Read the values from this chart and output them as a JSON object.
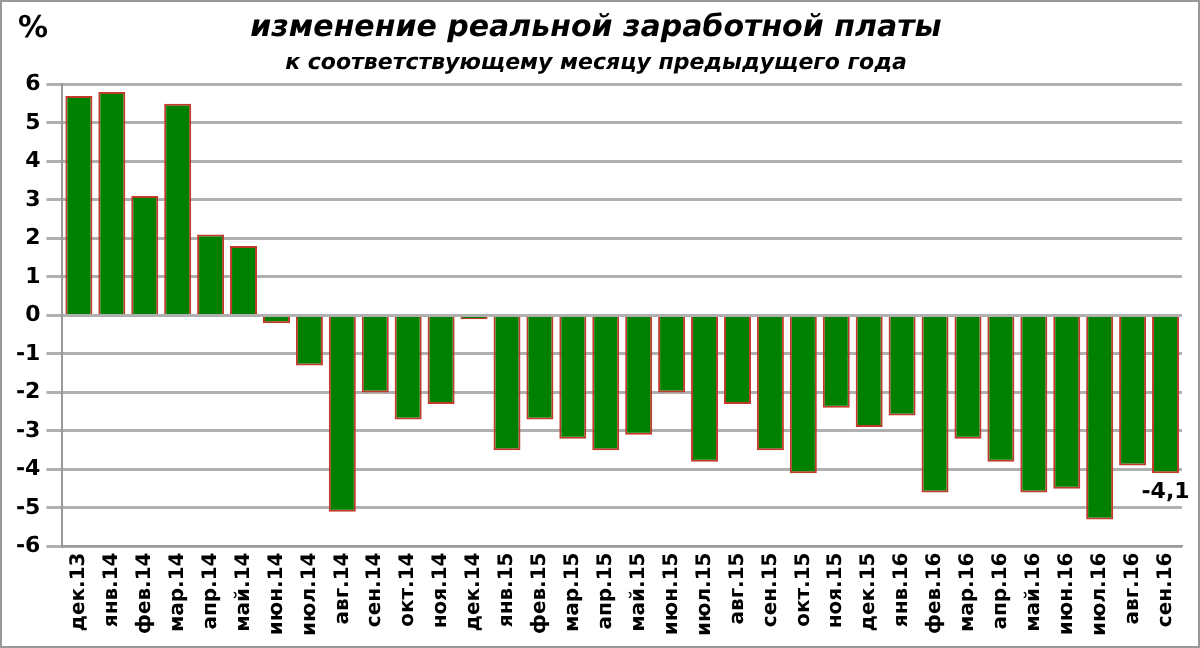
{
  "chart_data": {
    "type": "bar",
    "title": "изменение реальной заработной платы",
    "subtitle": "к соответствующему месяцу предыдущего года",
    "ylabel": "%",
    "categories": [
      "дек.13",
      "янв.14",
      "фев.14",
      "мар.14",
      "апр.14",
      "май.14",
      "июн.14",
      "июл.14",
      "авг.14",
      "сен.14",
      "окт.14",
      "ноя.14",
      "дек.14",
      "янв.15",
      "фев.15",
      "мар.15",
      "апр.15",
      "май.15",
      "июн.15",
      "июл.15",
      "авг.15",
      "сен.15",
      "окт.15",
      "ноя.15",
      "дек.15",
      "янв.16",
      "фев.16",
      "мар.16",
      "апр.16",
      "май.16",
      "июн.16",
      "июл.16",
      "авг.16",
      "сен.16"
    ],
    "values": [
      5.7,
      5.8,
      3.1,
      5.5,
      2.1,
      1.8,
      -0.2,
      -1.3,
      -5.1,
      -2.0,
      -2.7,
      -2.3,
      -0.1,
      -3.5,
      -2.7,
      -3.2,
      -3.5,
      -3.1,
      -2.0,
      -3.8,
      -2.3,
      -3.5,
      -4.1,
      -2.4,
      -2.9,
      -2.6,
      -4.6,
      -3.2,
      -3.8,
      -4.6,
      -4.5,
      -5.3,
      -3.9,
      -4.1
    ],
    "value_labels": [
      null,
      null,
      null,
      null,
      null,
      null,
      null,
      null,
      null,
      null,
      null,
      null,
      null,
      null,
      null,
      null,
      null,
      null,
      null,
      null,
      null,
      null,
      null,
      null,
      null,
      null,
      null,
      null,
      null,
      null,
      null,
      null,
      null,
      "-4,1"
    ],
    "color": "#008000",
    "ylim": [
      -6,
      6
    ],
    "yticks": [
      -6,
      -5,
      -4,
      -3,
      -2,
      -1,
      0,
      1,
      2,
      3,
      4,
      5,
      6
    ],
    "grid": "y",
    "legend": false
  }
}
